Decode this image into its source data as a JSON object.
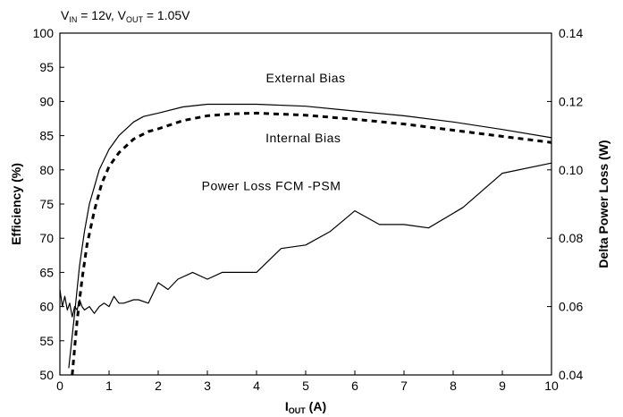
{
  "chart_data": {
    "type": "line",
    "title_main": "V",
    "title_sub1": "IN",
    "title_mid": " = 12v, V",
    "title_sub2": "OUT",
    "title_end": " = 1.05V",
    "xlabel_main": "I",
    "xlabel_sub": "OUT",
    "xlabel_end": " (A)",
    "ylabel": "Efficiency (%)",
    "y2label": "Delta Power Loss (W)",
    "xlim": [
      0,
      10
    ],
    "ylim": [
      50,
      100
    ],
    "y2lim": [
      0.04,
      0.14
    ],
    "x_ticks": [
      "0",
      "1",
      "2",
      "3",
      "4",
      "5",
      "6",
      "7",
      "8",
      "9",
      "10"
    ],
    "y_ticks": [
      "50",
      "55",
      "60",
      "65",
      "70",
      "75",
      "80",
      "85",
      "90",
      "95",
      "100"
    ],
    "y2_ticks": [
      "0.04",
      "0.06",
      "0.08",
      "0.10",
      "0.12",
      "0.14"
    ],
    "grid": false,
    "annotations": [
      {
        "text": "External Bias",
        "x": 5.0,
        "y": 92.8
      },
      {
        "text": "Internal Bias",
        "x": 4.95,
        "y": 84.0
      },
      {
        "text": "Power Loss FCM -PSM",
        "x": 4.3,
        "y": 77.0
      }
    ],
    "series": [
      {
        "key": "external",
        "axis": "left",
        "style": "solid",
        "x": [
          0.18,
          0.3,
          0.4,
          0.5,
          0.6,
          0.8,
          1.0,
          1.2,
          1.5,
          1.7,
          2.0,
          2.5,
          3.0,
          3.5,
          4.0,
          5.0,
          6.0,
          7.0,
          8.0,
          9.0,
          10.0
        ],
        "y": [
          51,
          59,
          66,
          71,
          75,
          80,
          83,
          85,
          87,
          87.8,
          88.3,
          89.2,
          89.6,
          89.6,
          89.6,
          89.3,
          88.6,
          87.9,
          87.0,
          85.9,
          84.7
        ]
      },
      {
        "key": "internal",
        "axis": "left",
        "style": "dashed",
        "x": [
          0.25,
          0.35,
          0.45,
          0.55,
          0.7,
          0.85,
          1.0,
          1.2,
          1.5,
          1.8,
          2.0,
          2.5,
          3.0,
          3.5,
          4.0,
          5.0,
          6.0,
          7.0,
          8.0,
          9.0,
          10.0
        ],
        "y": [
          50,
          58,
          64,
          69,
          74,
          78,
          80.5,
          82.5,
          84.5,
          85.6,
          86.0,
          87.2,
          87.9,
          88.2,
          88.3,
          88.0,
          87.4,
          86.7,
          85.8,
          84.9,
          84.0
        ]
      },
      {
        "key": "powerloss",
        "axis": "right",
        "style": "solid",
        "x": [
          0.0,
          0.05,
          0.1,
          0.15,
          0.2,
          0.25,
          0.3,
          0.35,
          0.4,
          0.45,
          0.5,
          0.6,
          0.7,
          0.8,
          0.9,
          1.0,
          1.1,
          1.2,
          1.3,
          1.5,
          1.6,
          1.8,
          2.0,
          2.2,
          2.4,
          2.7,
          3.0,
          3.3,
          3.5,
          4.0,
          4.5,
          5.0,
          5.5,
          6.0,
          6.5,
          7.0,
          7.5,
          8.2,
          9.0,
          10.0
        ],
        "y": [
          0.065,
          0.06,
          0.063,
          0.059,
          0.061,
          0.057,
          0.06,
          0.059,
          0.062,
          0.06,
          0.059,
          0.06,
          0.058,
          0.06,
          0.061,
          0.06,
          0.063,
          0.061,
          0.061,
          0.062,
          0.062,
          0.061,
          0.067,
          0.065,
          0.068,
          0.07,
          0.068,
          0.07,
          0.07,
          0.07,
          0.077,
          0.078,
          0.082,
          0.088,
          0.084,
          0.084,
          0.083,
          0.089,
          0.099,
          0.102
        ]
      }
    ]
  }
}
